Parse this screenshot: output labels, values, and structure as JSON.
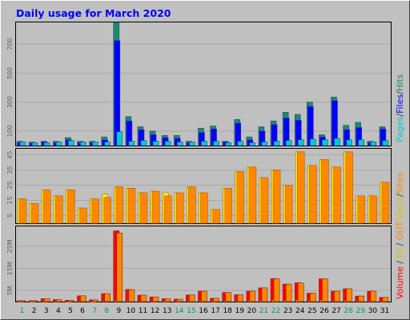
{
  "chart_data": [
    {
      "type": "bar",
      "title": "Daily usage for March 2020",
      "ylabel_parts": [
        "Pages",
        "Files",
        "Hits"
      ],
      "ylabel_separator": "/",
      "yticks": [
        100,
        300,
        500,
        700
      ],
      "ylim": [
        0,
        850
      ],
      "categories": [
        "1",
        "2",
        "3",
        "4",
        "5",
        "6",
        "7",
        "8",
        "9",
        "10",
        "11",
        "12",
        "13",
        "14",
        "15",
        "16",
        "17",
        "18",
        "19",
        "20",
        "21",
        "22",
        "23",
        "24",
        "25",
        "26",
        "27",
        "28",
        "29",
        "30",
        "31"
      ],
      "weekend_days": [
        "1",
        "7",
        "8",
        "14",
        "15",
        "21",
        "22",
        "28",
        "29"
      ],
      "series": [
        {
          "name": "Hits",
          "color": "#1b8c66",
          "values": [
            30,
            25,
            30,
            30,
            55,
            30,
            30,
            60,
            850,
            200,
            130,
            100,
            70,
            70,
            30,
            120,
            135,
            30,
            180,
            60,
            130,
            170,
            230,
            215,
            300,
            75,
            335,
            140,
            160,
            30,
            130
          ]
        },
        {
          "name": "Files",
          "color": "#0000ff",
          "values": [
            20,
            15,
            25,
            20,
            40,
            20,
            20,
            40,
            725,
            170,
            110,
            75,
            55,
            50,
            20,
            90,
            115,
            25,
            155,
            40,
            100,
            145,
            190,
            175,
            270,
            60,
            310,
            110,
            125,
            20,
            115
          ]
        },
        {
          "name": "Pages",
          "color": "#00cccc",
          "values": [
            25,
            20,
            20,
            25,
            35,
            25,
            25,
            25,
            95,
            30,
            35,
            30,
            30,
            25,
            25,
            30,
            30,
            20,
            30,
            20,
            25,
            30,
            35,
            40,
            45,
            40,
            50,
            40,
            40,
            25,
            35
          ]
        }
      ]
    },
    {
      "type": "bar",
      "ylabel_parts": [
        "Sites",
        "Visits"
      ],
      "ylabel_separator": "/",
      "yticks": [
        5,
        15,
        25,
        35,
        45
      ],
      "ylim": [
        0,
        49
      ],
      "series": [
        {
          "name": "Visits",
          "color": "#ffff00",
          "values": [
            16,
            13,
            22,
            18,
            22,
            10,
            16,
            19,
            24,
            23,
            20,
            21,
            20,
            20,
            24,
            20,
            9,
            23,
            34,
            37,
            30,
            35,
            25,
            47,
            38,
            42,
            37,
            47,
            18,
            18,
            27
          ]
        },
        {
          "name": "Sites",
          "color": "#ff8800",
          "values": [
            16,
            13,
            22,
            18,
            22,
            10,
            16,
            17,
            24,
            23,
            20,
            21,
            18,
            20,
            24,
            20,
            9,
            23,
            34,
            37,
            30,
            35,
            25,
            47,
            38,
            42,
            37,
            47,
            18,
            18,
            27
          ]
        }
      ]
    },
    {
      "type": "bar",
      "ylabel_parts": [
        "Volume",
        "IN",
        "OUT"
      ],
      "ylabel_separator": " / ",
      "yticks": [
        {
          "value": 5,
          "label": "5M"
        },
        {
          "value": 15,
          "label": "15M"
        },
        {
          "value": 25,
          "label": "25M"
        }
      ],
      "ylim": [
        0,
        34
      ],
      "series": [
        {
          "name": "Volume",
          "color": "#ff0000",
          "values": [
            0.4,
            0.4,
            1.3,
            0.9,
            0.6,
            2.6,
            0.8,
            3.6,
            32,
            5.5,
            2.9,
            2.1,
            1.3,
            1.1,
            3.0,
            4.7,
            1.5,
            4.1,
            3.1,
            4.7,
            6.2,
            10.4,
            7.9,
            8.5,
            3.8,
            10.3,
            4.7,
            5.8,
            2.5,
            4.7,
            1.9
          ]
        },
        {
          "name": "IN",
          "color": "#ffff00",
          "values": [
            0.1,
            0.1,
            0.2,
            0.2,
            0.1,
            0.3,
            0.1,
            0.3,
            0.5,
            0.4,
            0.3,
            0.2,
            0.2,
            0.2,
            0.3,
            0.4,
            0.2,
            0.4,
            0.3,
            0.4,
            0.5,
            0.6,
            0.5,
            0.6,
            0.4,
            0.6,
            0.4,
            0.5,
            0.3,
            0.4,
            0.2
          ]
        },
        {
          "name": "OUT",
          "color": "#ff8800",
          "values": [
            0.4,
            0.4,
            1.3,
            0.9,
            0.6,
            2.6,
            0.8,
            3.6,
            31,
            5.4,
            2.9,
            2.1,
            1.3,
            1.1,
            3.0,
            4.7,
            1.5,
            4.1,
            3.1,
            4.7,
            6.2,
            10.3,
            7.9,
            8.4,
            3.8,
            10.3,
            4.7,
            5.8,
            2.5,
            4.7,
            1.9
          ]
        }
      ]
    }
  ]
}
